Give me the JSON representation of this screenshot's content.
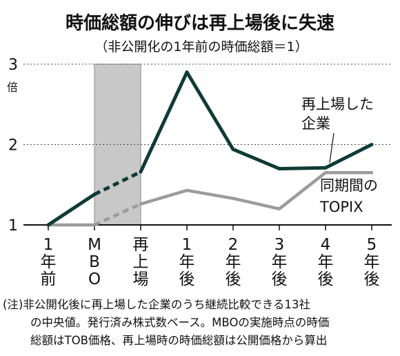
{
  "chart_data": {
    "type": "line",
    "title": "時価総額の伸びは再上場後に失速",
    "subtitle": "（非公開化の1年前の時価総額＝1）",
    "y_unit": "倍",
    "ylim": [
      1,
      3
    ],
    "yticks": [
      "1",
      "2",
      "3"
    ],
    "grid": "dotted horizontal lines at 2 and 3",
    "categories": [
      "1年前",
      "MBO",
      "再上場",
      "1年後",
      "2年後",
      "3年後",
      "4年後",
      "5年後"
    ],
    "x_label_columns": [
      [
        "1",
        "年",
        "前"
      ],
      [
        "M",
        "B",
        "O"
      ],
      [
        "再",
        "上",
        "場"
      ],
      [
        "1",
        "年",
        "後"
      ],
      [
        "2",
        "年",
        "後"
      ],
      [
        "3",
        "年",
        "後"
      ],
      [
        "4",
        "年",
        "後"
      ],
      [
        "5",
        "年",
        "後"
      ]
    ],
    "shaded_period": {
      "from": "MBO",
      "to": "再上場",
      "color": "#c8c8c8"
    },
    "series": [
      {
        "name_lines": [
          "再上場した",
          "企業"
        ],
        "color": "#0f3b34",
        "values": [
          1.0,
          1.38,
          1.66,
          2.9,
          1.94,
          1.7,
          1.71,
          2.0
        ],
        "dashed_segments": [
          [
            1,
            2
          ]
        ]
      },
      {
        "name_lines": [
          "同期間の",
          "TOPIX"
        ],
        "color": "#9b9b9b",
        "values": [
          1.0,
          1.0,
          1.26,
          1.43,
          1.33,
          1.2,
          1.65,
          1.65
        ],
        "dashed_segments": [
          [
            1,
            2
          ]
        ]
      }
    ],
    "note_lines": [
      "(注)非公開化後に再上場した企業のうち継続比較できる13社",
      "の中央値。発行済み株式数ベース。MBOの実施時点の時価",
      "総額はTOB価格、再上場時の時価総額は公開価格から算出"
    ]
  }
}
